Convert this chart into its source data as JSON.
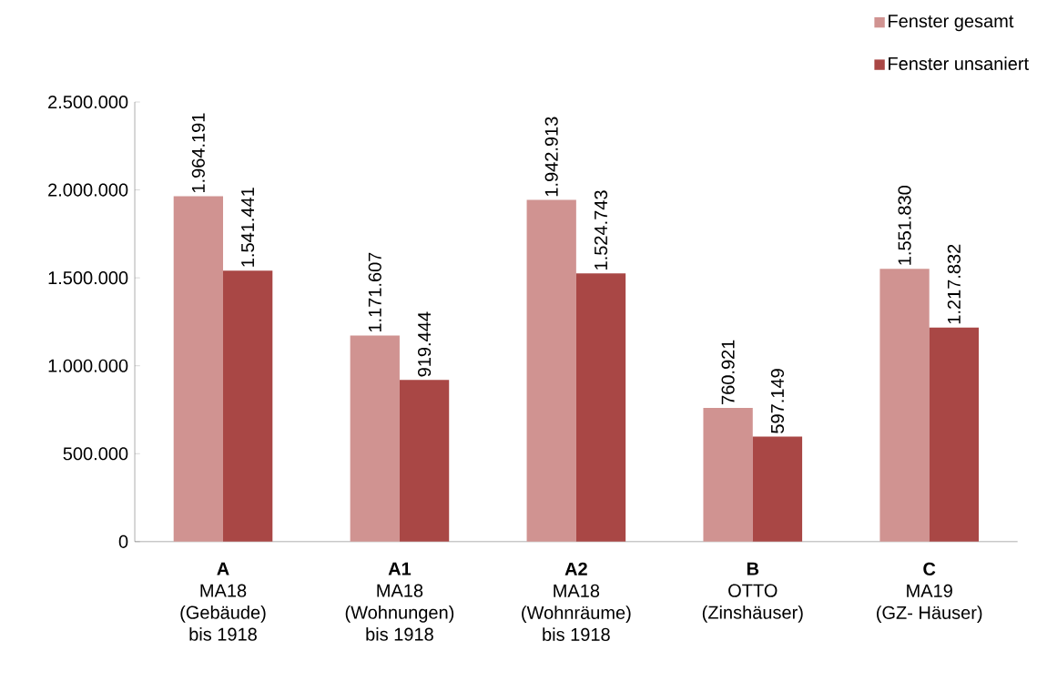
{
  "chart_data": {
    "type": "bar",
    "categories": [
      "**A**\nMA18\n(Gebäude)\nbis 1918",
      "**A1**\nMA18\n(Wohnungen)\nbis 1918",
      "**A2**\nMA18\n(Wohnräume)\nbis 1918",
      "**B**\nOTTO\n(Zinshäuser)",
      "**C**\nMA19\n(GZ- Häuser)"
    ],
    "series": [
      {
        "name": "Fenster gesamt",
        "color": "#d09391",
        "values": [
          1964191,
          1171607,
          1942913,
          760921,
          1551830
        ],
        "value_labels": [
          "1.964.191",
          "1.171.607",
          "1.942.913",
          "760.921",
          "1.551.830"
        ]
      },
      {
        "name": "Fenster unsaniert",
        "color": "#a94745",
        "values": [
          1541441,
          919444,
          1524743,
          597149,
          1217832
        ],
        "value_labels": [
          "1.541.441",
          "919.444",
          "1.524.743",
          "597.149",
          "1.217.832"
        ]
      }
    ],
    "ylim": [
      0,
      2500000
    ],
    "yticks": [
      {
        "value": 0,
        "label": "0"
      },
      {
        "value": 500000,
        "label": "500.000"
      },
      {
        "value": 1000000,
        "label": "1.000.000"
      },
      {
        "value": 1500000,
        "label": "1.500.000"
      },
      {
        "value": 2000000,
        "label": "2.000.000"
      },
      {
        "value": 2500000,
        "label": "2.500.000"
      }
    ],
    "grid": false,
    "legend": "top right"
  }
}
